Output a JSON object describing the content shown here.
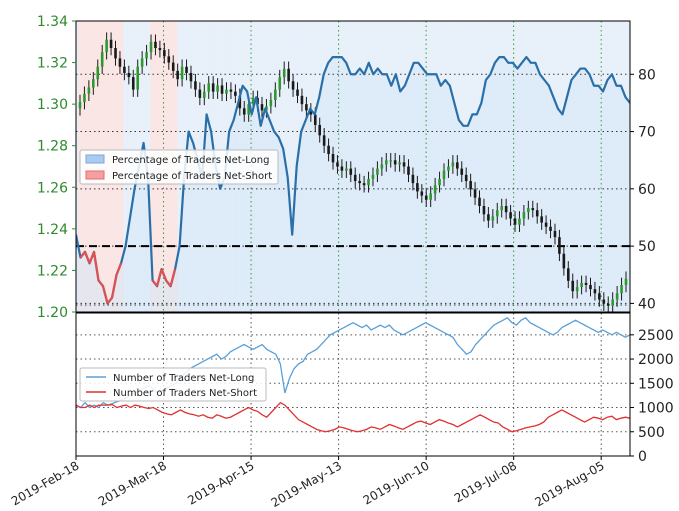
{
  "chart_data": [
    {
      "type": "line",
      "panel": "top",
      "left_axis": {
        "ylim": [
          1.2,
          1.34
        ],
        "ticks": [
          "1.34",
          "1.32",
          "1.30",
          "1.28",
          "1.26",
          "1.24",
          "1.22",
          "1.20"
        ],
        "color": "#2e8b2e"
      },
      "right_axis": {
        "ylim": [
          38.5,
          89.3
        ],
        "ticks": [
          "80",
          "70",
          "60",
          "50",
          "40"
        ]
      },
      "reference_line": 50,
      "legend": {
        "placement": "center-left",
        "entries": [
          {
            "label": "Percentage of Traders Net-Long",
            "color": "#aacbf0"
          },
          {
            "label": "Percentage of Traders Net-Short",
            "color": "#f4a0a0"
          }
        ]
      },
      "net_long_pct": {
        "color": "#2a6fa8",
        "values": [
          52,
          48,
          49,
          47,
          49,
          44,
          43,
          40,
          41,
          45,
          47,
          50,
          55,
          60,
          64,
          68,
          62,
          44,
          43,
          46,
          44,
          43,
          46,
          50,
          62,
          70,
          68,
          65,
          62,
          73,
          70,
          64,
          60,
          62,
          70,
          72,
          75,
          78,
          77,
          73,
          76,
          71,
          74,
          72,
          70,
          69,
          67,
          62,
          52,
          64,
          70,
          72,
          74,
          73,
          76,
          80,
          82,
          83,
          83,
          83,
          82,
          80,
          80,
          81,
          80,
          82,
          80,
          81,
          80,
          80,
          78,
          80,
          77,
          78,
          80,
          82,
          82,
          81,
          80,
          80,
          80,
          78,
          79,
          78,
          75,
          72,
          71,
          71,
          73,
          73,
          75,
          79,
          80,
          82,
          83,
          83,
          82,
          82,
          81,
          82,
          83,
          82,
          82,
          80,
          79,
          78,
          76,
          74,
          73,
          76,
          79,
          80,
          81,
          81,
          80,
          78,
          78,
          77,
          79,
          80,
          78,
          78,
          76,
          75
        ]
      },
      "price": {
        "bar_color": "#1a1a1a",
        "close": [
          1.301,
          1.305,
          1.308,
          1.312,
          1.318,
          1.325,
          1.331,
          1.327,
          1.322,
          1.318,
          1.315,
          1.313,
          1.307,
          1.318,
          1.322,
          1.325,
          1.33,
          1.327,
          1.326,
          1.323,
          1.32,
          1.316,
          1.312,
          1.318,
          1.315,
          1.311,
          1.307,
          1.303,
          1.306,
          1.31,
          1.306,
          1.309,
          1.305,
          1.307,
          1.306,
          1.304,
          1.298,
          1.295,
          1.3,
          1.303,
          1.3,
          1.297,
          1.299,
          1.302,
          1.307,
          1.313,
          1.317,
          1.311,
          1.307,
          1.304,
          1.3,
          1.297,
          1.295,
          1.29,
          1.285,
          1.28,
          1.276,
          1.272,
          1.27,
          1.268,
          1.269,
          1.266,
          1.263,
          1.262,
          1.261,
          1.264,
          1.266,
          1.269,
          1.271,
          1.273,
          1.273,
          1.271,
          1.272,
          1.27,
          1.266,
          1.262,
          1.258,
          1.256,
          1.254,
          1.257,
          1.261,
          1.264,
          1.268,
          1.27,
          1.272,
          1.269,
          1.266,
          1.263,
          1.259,
          1.255,
          1.251,
          1.247,
          1.244,
          1.246,
          1.249,
          1.251,
          1.248,
          1.245,
          1.242,
          1.245,
          1.248,
          1.25,
          1.249,
          1.246,
          1.243,
          1.241,
          1.239,
          1.236,
          1.228,
          1.221,
          1.215,
          1.21,
          1.212,
          1.214,
          1.213,
          1.211,
          1.209,
          1.206,
          1.204,
          1.203,
          1.206,
          1.209,
          1.213,
          1.216
        ]
      }
    },
    {
      "type": "line",
      "panel": "bottom",
      "ylim": [
        0,
        2950
      ],
      "right_axis": {
        "ticks": [
          "2500",
          "2000",
          "1500",
          "1000",
          "500",
          "0"
        ]
      },
      "legend": {
        "placement": "center-left",
        "entries": [
          {
            "label": "Number of Traders Net-Long",
            "color": "#5aa0d8"
          },
          {
            "label": "Number of Traders Net-Short",
            "color": "#e03030"
          }
        ]
      },
      "x_labels": [
        "2019-Feb-18",
        "2019-Mar-18",
        "2019-Apr-15",
        "2019-May-13",
        "2019-Jun-10",
        "2019-Jul-08",
        "2019-Aug-05"
      ],
      "net_long": {
        "color": "#5aa0d8",
        "values": [
          1050,
          1000,
          1100,
          1000,
          1050,
          1000,
          1100,
          1050,
          1080,
          1120,
          1150,
          1200,
          1250,
          1300,
          1350,
          1400,
          1450,
          1380,
          1300,
          1350,
          1400,
          1450,
          1500,
          1600,
          1700,
          1800,
          1850,
          1900,
          1950,
          2000,
          2050,
          2100,
          2000,
          2050,
          2150,
          2200,
          2250,
          2300,
          2250,
          2200,
          2250,
          2300,
          2200,
          2150,
          2100,
          1900,
          1300,
          1600,
          1800,
          1900,
          1950,
          2100,
          2150,
          2200,
          2300,
          2400,
          2500,
          2550,
          2600,
          2650,
          2700,
          2750,
          2700,
          2650,
          2700,
          2600,
          2650,
          2700,
          2650,
          2700,
          2600,
          2550,
          2500,
          2550,
          2600,
          2650,
          2700,
          2750,
          2700,
          2650,
          2600,
          2550,
          2500,
          2450,
          2300,
          2200,
          2100,
          2150,
          2300,
          2400,
          2500,
          2600,
          2700,
          2750,
          2800,
          2850,
          2750,
          2700,
          2800,
          2850,
          2750,
          2700,
          2650,
          2600,
          2550,
          2500,
          2550,
          2650,
          2700,
          2750,
          2800,
          2750,
          2700,
          2650,
          2600,
          2550,
          2600,
          2550,
          2500,
          2550,
          2500,
          2450,
          2500
        ]
      },
      "net_short": {
        "color": "#e03030",
        "values": [
          1050,
          1000,
          1000,
          1050,
          1000,
          1050,
          1050,
          1050,
          1060,
          1000,
          1030,
          1050,
          1000,
          1050,
          1030,
          1000,
          980,
          1000,
          950,
          900,
          870,
          850,
          900,
          950,
          900,
          870,
          850,
          820,
          850,
          800,
          780,
          850,
          820,
          780,
          800,
          850,
          900,
          950,
          1000,
          950,
          920,
          850,
          800,
          900,
          1000,
          1100,
          1050,
          950,
          850,
          750,
          700,
          650,
          600,
          550,
          520,
          500,
          520,
          550,
          600,
          580,
          550,
          520,
          500,
          520,
          550,
          600,
          580,
          550,
          600,
          650,
          620,
          580,
          550,
          600,
          650,
          700,
          720,
          680,
          650,
          700,
          750,
          720,
          680,
          650,
          600,
          650,
          700,
          750,
          800,
          850,
          800,
          750,
          700,
          680,
          600,
          550,
          500,
          520,
          550,
          580,
          600,
          620,
          650,
          700,
          800,
          850,
          900,
          950,
          900,
          850,
          800,
          750,
          700,
          750,
          800,
          780,
          750,
          800,
          820,
          750,
          780,
          800,
          780
        ]
      }
    }
  ]
}
